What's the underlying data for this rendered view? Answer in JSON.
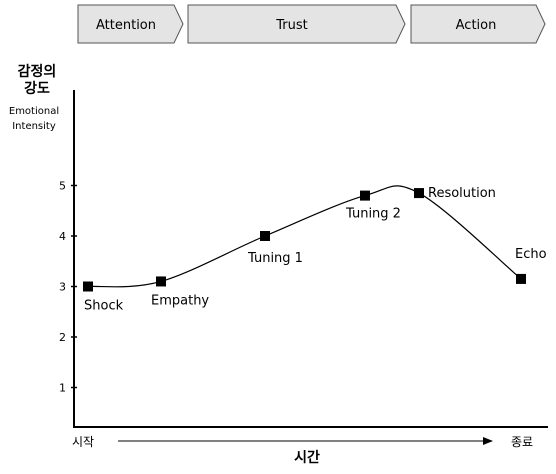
{
  "phases": [
    "Attention",
    "Trust",
    "Action"
  ],
  "y_axis": {
    "label_ko_line1": "감정의",
    "label_ko_line2": "강도",
    "label_en_line1": "Emotional",
    "label_en_line2": "Intensity"
  },
  "x_axis": {
    "start": "시작",
    "end": "종료",
    "title": "시간"
  },
  "chart_data": {
    "type": "line",
    "title": "",
    "xlabel": "시간",
    "ylabel": "감정의 강도 Emotional Intensity",
    "ylim": [
      0,
      5.8
    ],
    "yticks": [
      1,
      2,
      3,
      4,
      5
    ],
    "grid": false,
    "points": [
      {
        "label": "Shock",
        "x": 1,
        "y": 3.0
      },
      {
        "label": "Empathy",
        "x": 2,
        "y": 3.1
      },
      {
        "label": "Tuning 1",
        "x": 3,
        "y": 4.0
      },
      {
        "label": "Tuning 2",
        "x": 4,
        "y": 4.8
      },
      {
        "label": "Resolution",
        "x": 5,
        "y": 4.85
      },
      {
        "label": "Echo",
        "x": 6,
        "y": 3.15
      }
    ]
  }
}
